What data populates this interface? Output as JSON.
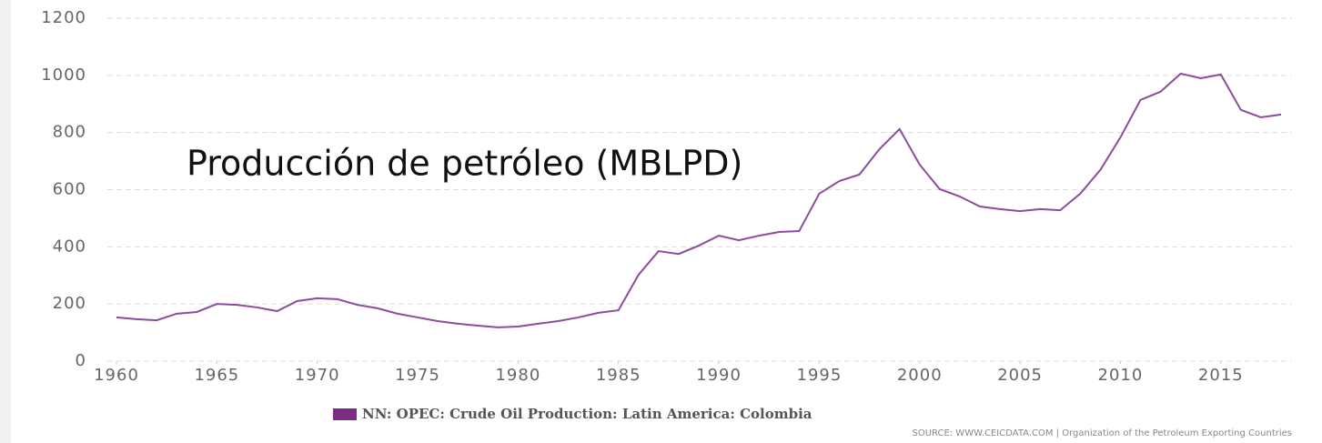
{
  "chart_data": {
    "type": "line",
    "annotation": "Producción de petróleo (MBLPD)",
    "source": "SOURCE: WWW.CEICDATA.COM | Organization of the Petroleum Exporting Countries",
    "x": [
      1960,
      1961,
      1962,
      1963,
      1964,
      1965,
      1966,
      1967,
      1968,
      1969,
      1970,
      1971,
      1972,
      1973,
      1974,
      1975,
      1976,
      1977,
      1978,
      1979,
      1980,
      1981,
      1982,
      1983,
      1984,
      1985,
      1986,
      1987,
      1988,
      1989,
      1990,
      1991,
      1992,
      1993,
      1994,
      1995,
      1996,
      1997,
      1998,
      1999,
      2000,
      2001,
      2002,
      2003,
      2004,
      2005,
      2006,
      2007,
      2008,
      2009,
      2010,
      2011,
      2012,
      2013,
      2014,
      2015,
      2016,
      2017,
      2018
    ],
    "series": [
      {
        "name": "NN: OPEC: Crude Oil Production: Latin America: Colombia",
        "color": "#8b4c9c",
        "legend_color": "#7b2c83",
        "values": [
          153,
          147,
          143,
          166,
          172,
          200,
          197,
          188,
          175,
          210,
          220,
          217,
          197,
          185,
          166,
          153,
          140,
          131,
          124,
          118,
          121,
          131,
          140,
          153,
          169,
          178,
          302,
          385,
          375,
          404,
          439,
          423,
          439,
          452,
          455,
          586,
          630,
          653,
          742,
          812,
          688,
          602,
          576,
          541,
          532,
          525,
          532,
          528,
          586,
          669,
          783,
          914,
          943,
          1006,
          990,
          1003,
          879,
          853,
          863
        ]
      }
    ],
    "xlim": [
      1960,
      2018
    ],
    "xticks": [
      1960,
      1965,
      1970,
      1975,
      1980,
      1985,
      1990,
      1995,
      2000,
      2005,
      2010,
      2015
    ],
    "ylim": [
      0,
      1200
    ],
    "yticks": [
      0,
      200,
      400,
      600,
      800,
      1000,
      1200
    ],
    "grid": true
  }
}
